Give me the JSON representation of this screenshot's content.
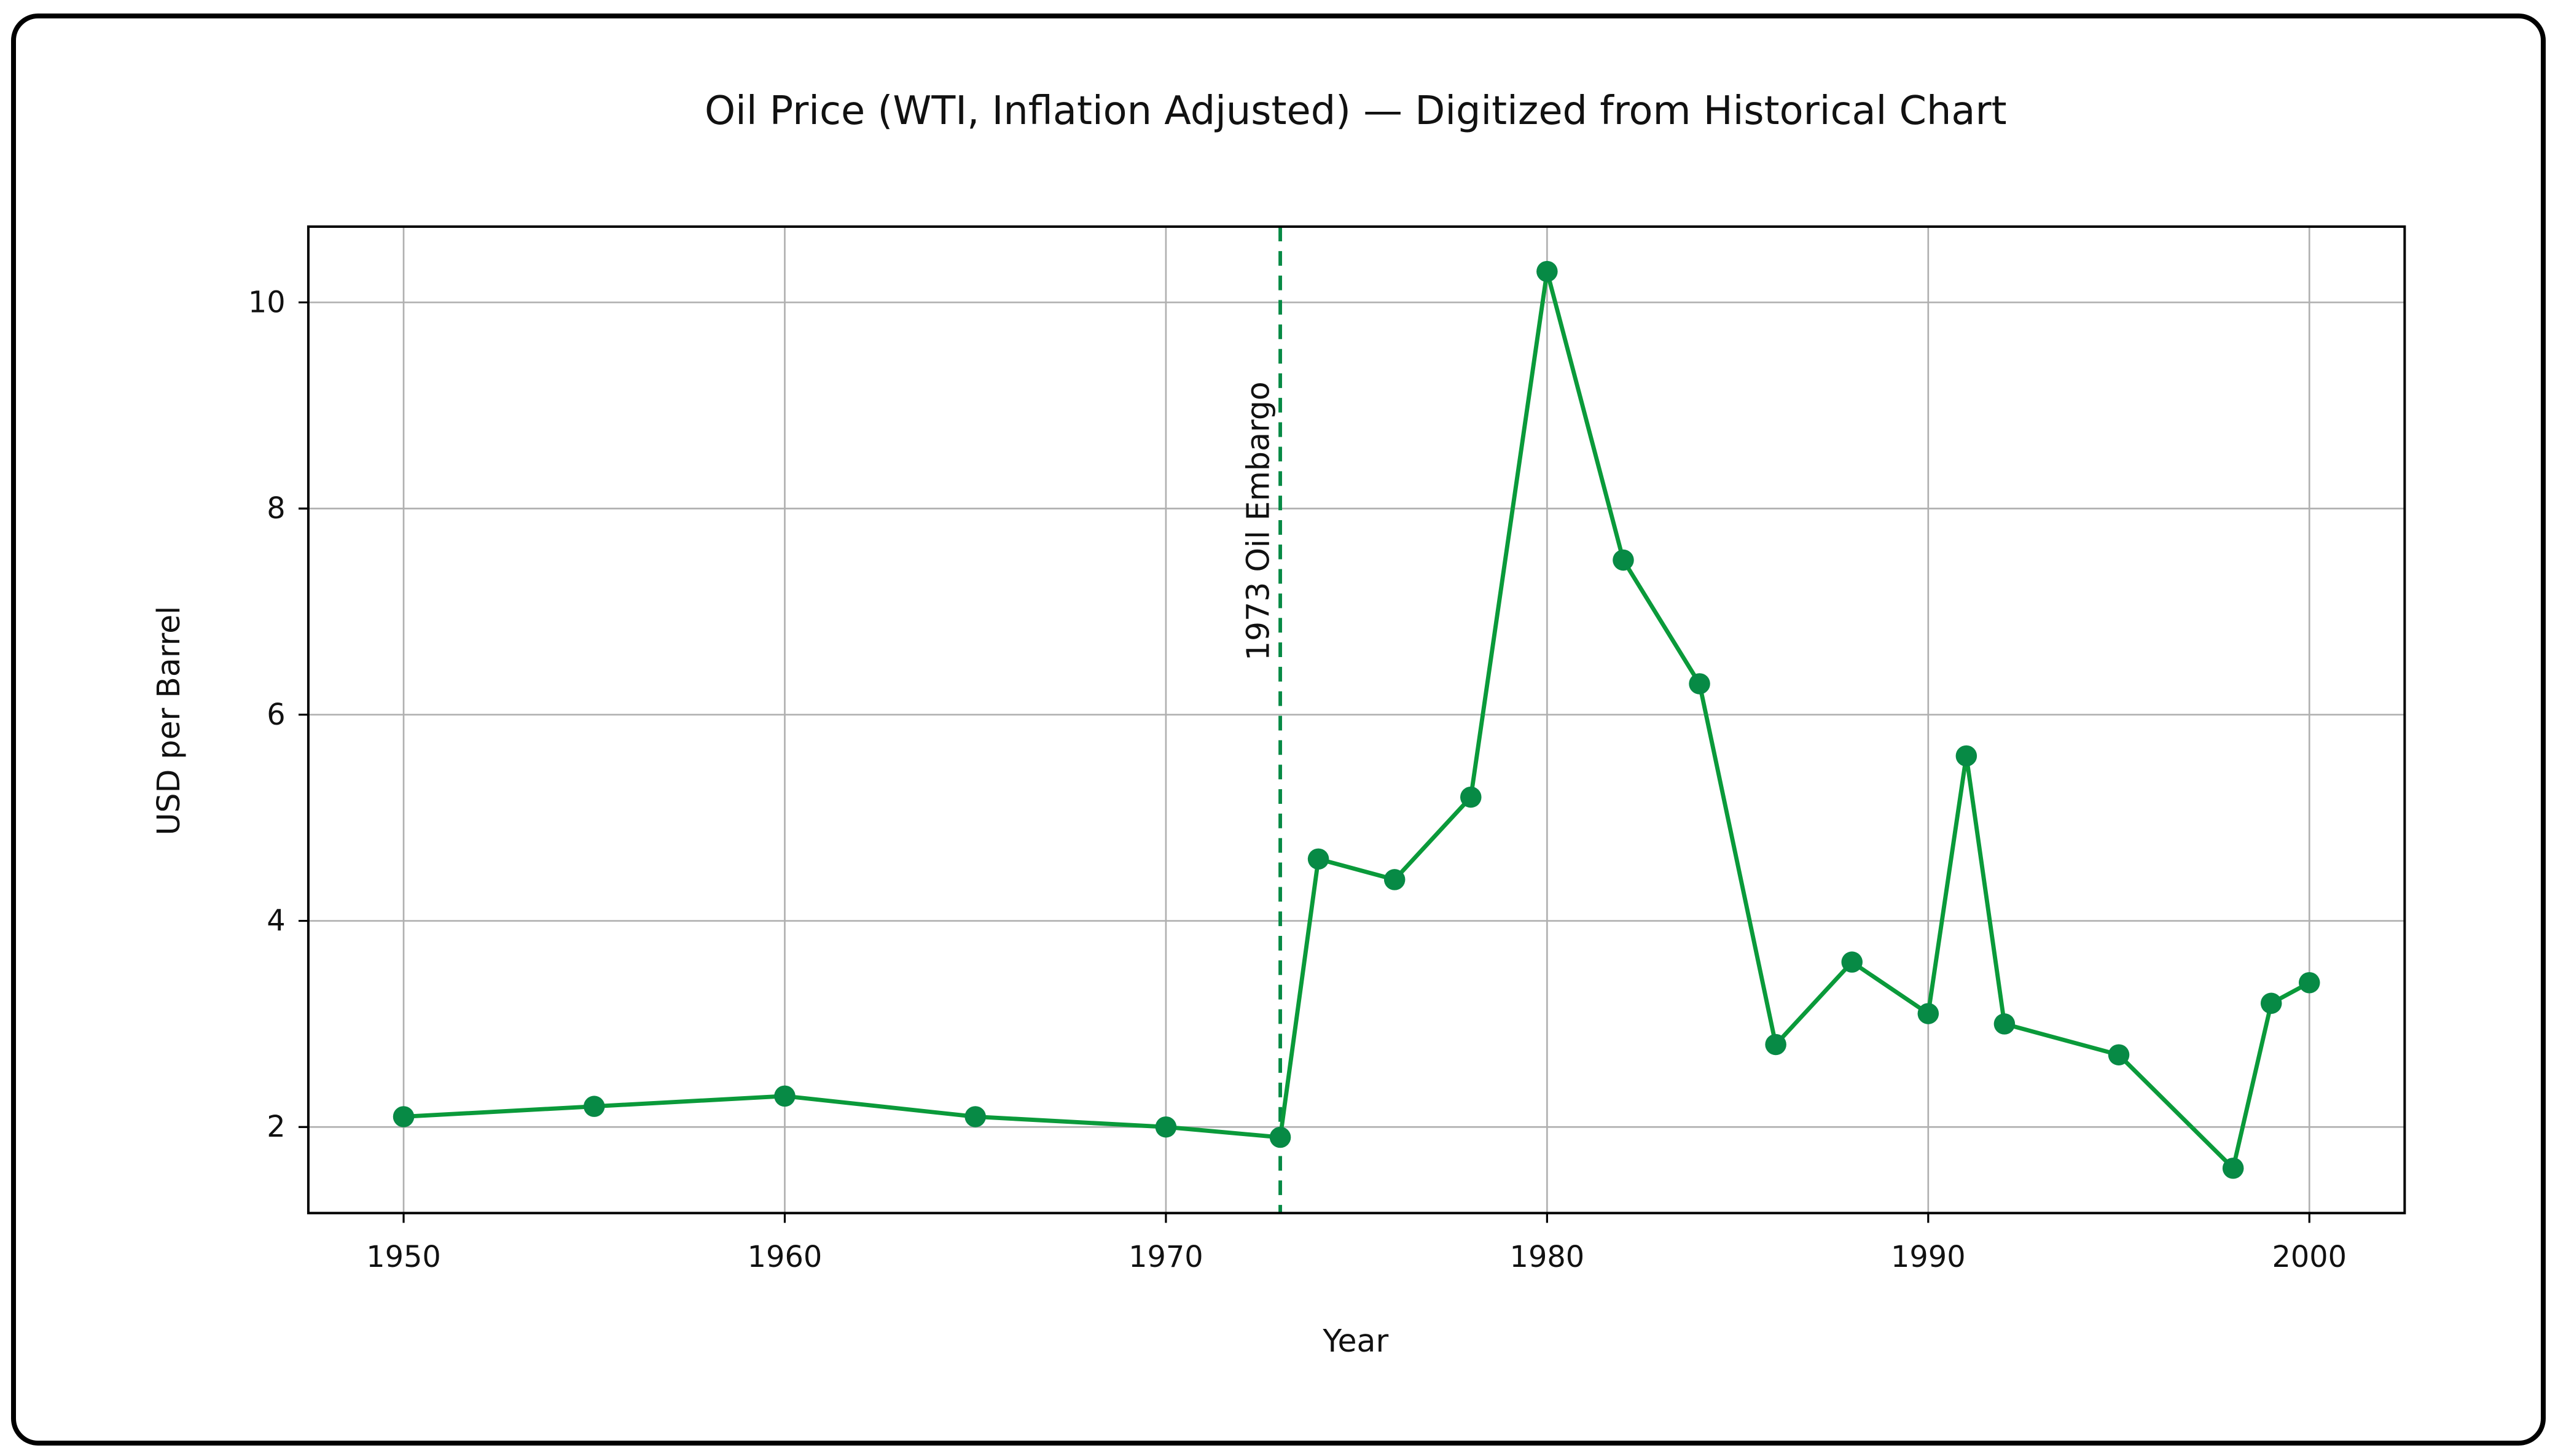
{
  "chart_data": {
    "type": "line",
    "title": "Oil Price (WTI, Inflation Adjusted) — Digitized from Historical Chart",
    "xlabel": "Year",
    "ylabel": "USD per Barrel",
    "xlim": [
      1947.5,
      2002.5
    ],
    "ylim": [
      1.165,
      10.735
    ],
    "xticks": [
      1950,
      1960,
      1970,
      1980,
      1990,
      2000
    ],
    "yticks": [
      2,
      4,
      6,
      8,
      10
    ],
    "grid": true,
    "x": [
      1950,
      1955,
      1960,
      1965,
      1970,
      1973,
      1974,
      1976,
      1978,
      1980,
      1982,
      1984,
      1986,
      1988,
      1990,
      1991,
      1992,
      1995,
      1998,
      1999,
      2000
    ],
    "series": [
      {
        "values": [
          2.1,
          2.2,
          2.3,
          2.1,
          2.0,
          1.9,
          4.6,
          4.4,
          5.2,
          10.3,
          7.5,
          6.3,
          2.8,
          3.6,
          3.1,
          5.6,
          3.0,
          2.7,
          1.6,
          3.2,
          3.4
        ],
        "color": "#0a9a3a",
        "marker": "circle",
        "marker_color": "#078a45"
      }
    ],
    "annotations": [
      {
        "type": "vline",
        "x": 1973,
        "style": "dashed",
        "color": "#078a45",
        "label": "1973 Oil Embargo"
      }
    ]
  }
}
